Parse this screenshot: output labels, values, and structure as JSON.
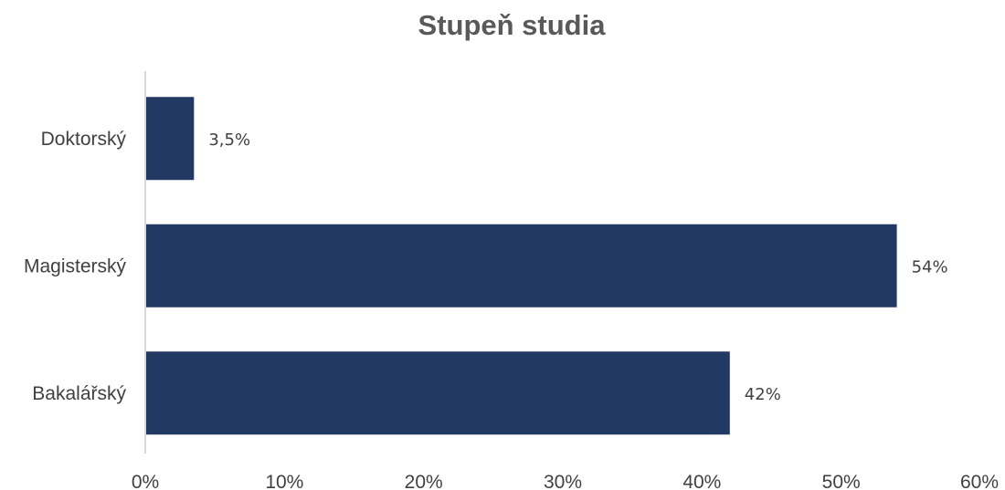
{
  "chart_data": {
    "type": "bar",
    "orientation": "horizontal",
    "title": "Stupeň studia",
    "categories": [
      "Doktorský",
      "Magisterský",
      "Bakalářský"
    ],
    "values": [
      3.5,
      54,
      42
    ],
    "value_labels": [
      "3,5%",
      "54%",
      "42%"
    ],
    "x_ticks": [
      "0%",
      "10%",
      "20%",
      "30%",
      "40%",
      "50%",
      "60%"
    ],
    "xlim": [
      0,
      60
    ],
    "grid": false,
    "legend": "none",
    "bar_color": "#223964",
    "axis_color": "#d9d9d9"
  }
}
